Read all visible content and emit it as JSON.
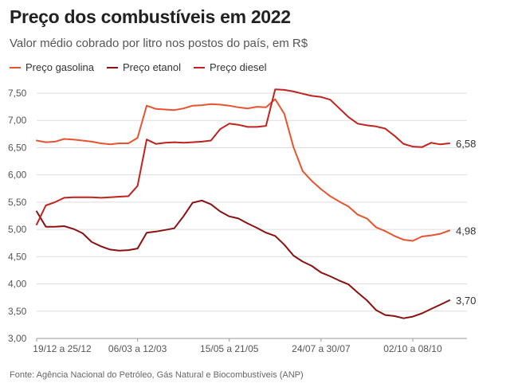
{
  "title": "Preço dos combustíveis em 2022",
  "subtitle": "Valor médio cobrado por litro nos postos do país, em R$",
  "source": "Fonte: Agência Nacional do Petróleo, Gás Natural e Biocombustíveis (ANP)",
  "colors": {
    "gasolina": "#e8532e",
    "etanol": "#8b1010",
    "diesel": "#c0221e",
    "grid": "#dddddd",
    "axis": "#999999"
  },
  "legend": [
    {
      "label": "Preço gasolina",
      "color": "#e8532e"
    },
    {
      "label": "Preço etanol",
      "color": "#8b1010"
    },
    {
      "label": "Preço diesel",
      "color": "#c0221e"
    }
  ],
  "end_labels": {
    "diesel": "6,58",
    "gasolina": "4,98",
    "etanol": "3,70"
  },
  "chart_data": {
    "type": "line",
    "title": "Preço dos combustíveis em 2022",
    "subtitle": "Valor médio cobrado por litro nos postos do país, em R$",
    "ylim": [
      3.0,
      7.5
    ],
    "yticks": [
      "7,50",
      "7,00",
      "6,50",
      "6,00",
      "5,50",
      "5,00",
      "4,50",
      "4,00",
      "3,50",
      "3,00"
    ],
    "xtick_labels": [
      {
        "label": "19/12 a 25/12",
        "index": 0
      },
      {
        "label": "06/03 a 12/03",
        "index": 11
      },
      {
        "label": "15/05 a 21/05",
        "index": 21
      },
      {
        "label": "24/07 a 30/07",
        "index": 31
      },
      {
        "label": "02/10 a 08/10",
        "index": 41
      }
    ],
    "grid": true,
    "legend_position": "top-left",
    "series": [
      {
        "name": "Preço gasolina",
        "key": "gasolina",
        "values": [
          6.63,
          6.6,
          6.61,
          6.66,
          6.65,
          6.63,
          6.61,
          6.58,
          6.56,
          6.58,
          6.58,
          6.68,
          7.27,
          7.21,
          7.2,
          7.19,
          7.22,
          7.27,
          7.28,
          7.3,
          7.29,
          7.27,
          7.24,
          7.22,
          7.25,
          7.24,
          7.39,
          7.12,
          6.51,
          6.07,
          5.89,
          5.74,
          5.61,
          5.51,
          5.42,
          5.27,
          5.2,
          5.04,
          4.97,
          4.88,
          4.81,
          4.79,
          4.87,
          4.89,
          4.92,
          4.98
        ]
      },
      {
        "name": "Preço etanol",
        "key": "etanol",
        "values": [
          5.33,
          5.05,
          5.05,
          5.06,
          5.01,
          4.93,
          4.77,
          4.69,
          4.63,
          4.61,
          4.62,
          4.65,
          4.94,
          4.96,
          4.99,
          5.02,
          5.24,
          5.49,
          5.53,
          5.46,
          5.33,
          5.24,
          5.2,
          5.11,
          5.03,
          4.94,
          4.88,
          4.72,
          4.52,
          4.41,
          4.33,
          4.21,
          4.14,
          4.06,
          3.99,
          3.84,
          3.7,
          3.52,
          3.43,
          3.41,
          3.37,
          3.4,
          3.46,
          3.54,
          3.62,
          3.7
        ]
      },
      {
        "name": "Preço diesel",
        "key": "diesel",
        "values": [
          5.09,
          5.44,
          5.5,
          5.58,
          5.59,
          5.59,
          5.59,
          5.58,
          5.59,
          5.6,
          5.61,
          5.8,
          6.65,
          6.57,
          6.59,
          6.6,
          6.59,
          6.6,
          6.61,
          6.63,
          6.84,
          6.94,
          6.92,
          6.88,
          6.88,
          6.9,
          7.57,
          7.56,
          7.53,
          7.49,
          7.45,
          7.43,
          7.38,
          7.22,
          7.06,
          6.94,
          6.91,
          6.89,
          6.85,
          6.72,
          6.57,
          6.52,
          6.51,
          6.59,
          6.56,
          6.58
        ]
      }
    ]
  }
}
